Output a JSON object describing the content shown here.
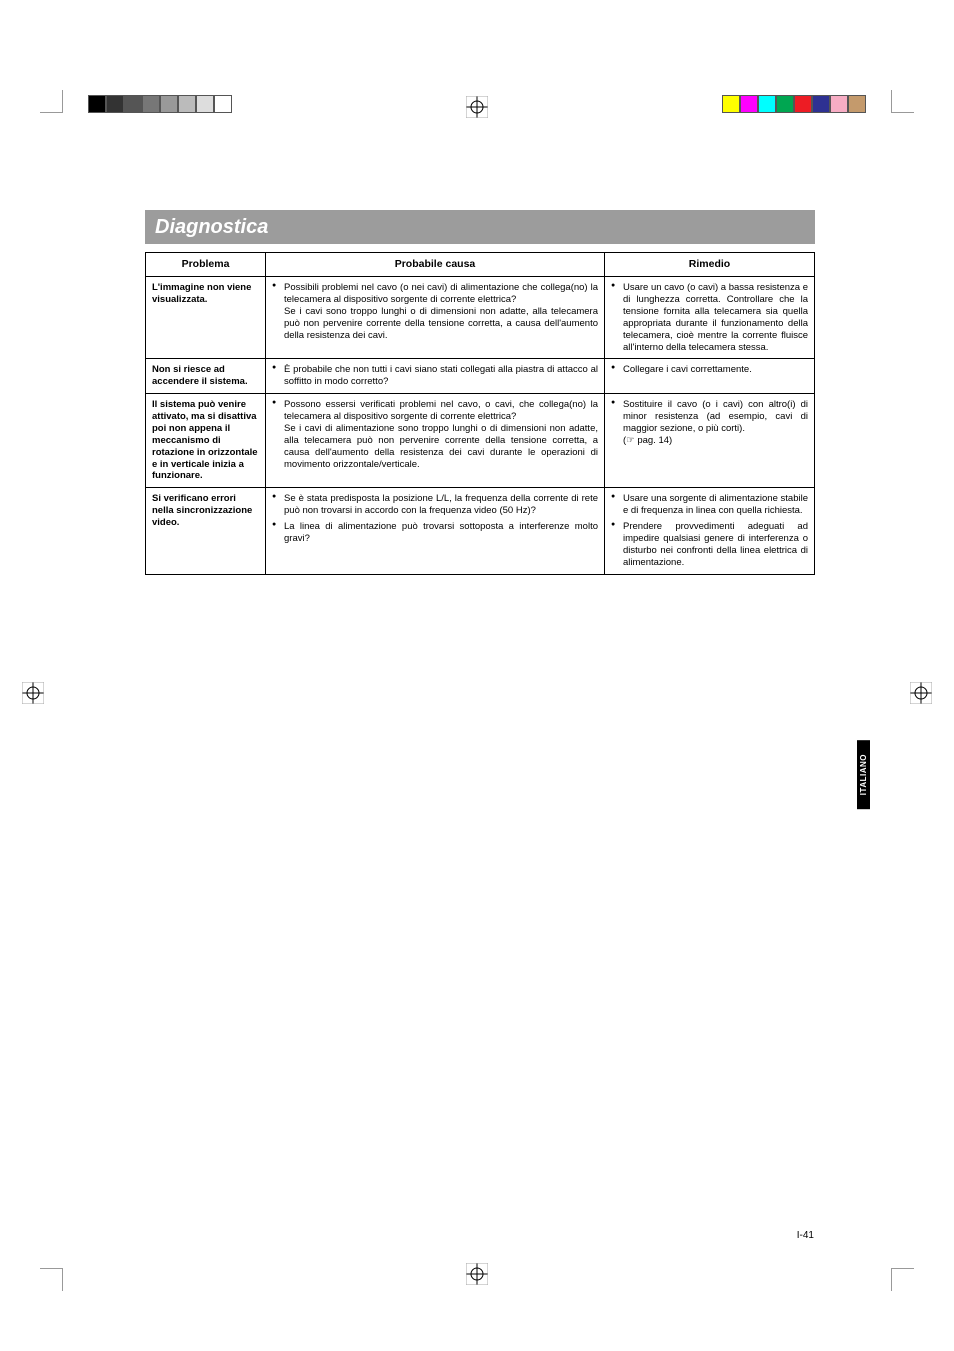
{
  "print_marks": {
    "grayscale_bar": [
      "#000000",
      "#333333",
      "#555555",
      "#777777",
      "#999999",
      "#bbbbbb",
      "#dddddd",
      "#ffffff"
    ],
    "color_bar": [
      "#ffff00",
      "#ff00ff",
      "#00ffff",
      "#00a651",
      "#ed1c24",
      "#2e3192",
      "#f7adc4",
      "#c49a6c"
    ]
  },
  "title": "Diagnostica",
  "headers": {
    "problem": "Problema",
    "cause": "Probabile causa",
    "remedy": "Rimedio"
  },
  "rows": [
    {
      "problem": "L'immagine non viene visualizzata.",
      "causes": [
        "Possibili problemi nel cavo (o nei cavi) di alimentazione che collega(no) la telecamera al dispositivo sorgente di corrente elettrica?\nSe i cavi sono troppo lunghi o di dimensioni non adatte, alla telecamera può non pervenire corrente della tensione corretta, a causa dell'aumento della resistenza dei cavi."
      ],
      "remedies": [
        "Usare un cavo (o cavi) a bassa resistenza e di lunghezza corretta. Controllare che la tensione fornita alla telecamera sia quella appropriata durante il funzionamento della telecamera, cioè mentre la corrente fluisce all'interno della telecamera stessa."
      ]
    },
    {
      "problem": "Non si riesce ad accendere il sistema.",
      "causes": [
        "È probabile che non tutti i cavi siano stati collegati alla piastra di attacco al soffitto in modo corretto?"
      ],
      "remedies": [
        "Collegare i cavi correttamente."
      ]
    },
    {
      "problem": "Il sistema può venire attivato, ma si disattiva poi non appena il meccanismo di rotazione in orizzontale e in verticale inizia a funzionare.",
      "causes": [
        "Possono essersi verificati problemi nel cavo, o cavi, che collega(no) la telecamera al dispositivo sorgente di corrente elettrica?\nSe i cavi di alimentazione sono troppo lunghi o di dimensioni non adatte, alla telecamera può non pervenire corrente della tensione corretta, a causa dell'aumento della resistenza dei cavi durante le operazioni di movimento orizzontale/verticale."
      ],
      "remedies": [
        "Sostituire il cavo (o i cavi) con altro(i) di minor resistenza (ad esempio, cavi di maggior sezione, o più corti).\n(☞ pag. 14)"
      ]
    },
    {
      "problem": "Si verificano errori nella sincronizzazione video.",
      "causes": [
        "Se è stata predisposta la posizione L/L, la frequenza della corrente di rete può non trovarsi in accordo con la frequenza video (50 Hz)?",
        "La linea di alimentazione può trovarsi sottoposta a interferenze molto gravi?"
      ],
      "remedies": [
        "Usare una sorgente di alimentazione stabile e di frequenza in linea con quella richiesta.",
        "Prendere provvedimenti adeguati ad impedire qualsiasi genere di interferenza o disturbo nei confronti della linea elettrica di alimentazione."
      ]
    }
  ],
  "lang_tab": "ITALIANO",
  "page_number": "I-41"
}
